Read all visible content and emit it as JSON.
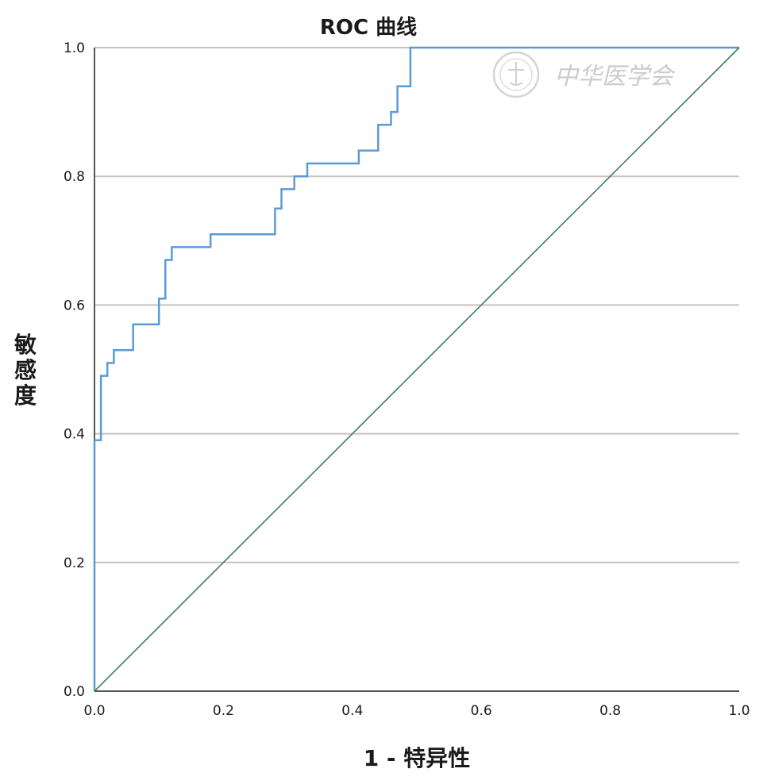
{
  "chart_data": {
    "type": "line",
    "title": "ROC 曲线",
    "xlabel": "1 - 特异性",
    "ylabel": "敏感度",
    "xlim": [
      0,
      1
    ],
    "ylim": [
      0,
      1
    ],
    "x_ticks": [
      "0.0",
      "0.2",
      "0.4",
      "0.6",
      "0.8",
      "1.0"
    ],
    "y_ticks": [
      "0.0",
      "0.2",
      "0.4",
      "0.6",
      "0.8",
      "1.0"
    ],
    "grid": "horizontal",
    "legend": "none",
    "series": [
      {
        "color": "#5b9bd5",
        "step": true,
        "x": [
          0.0,
          0.0,
          0.01,
          0.01,
          0.02,
          0.02,
          0.03,
          0.03,
          0.06,
          0.06,
          0.1,
          0.1,
          0.11,
          0.11,
          0.12,
          0.12,
          0.18,
          0.18,
          0.28,
          0.28,
          0.29,
          0.29,
          0.31,
          0.31,
          0.33,
          0.33,
          0.41,
          0.41,
          0.44,
          0.44,
          0.46,
          0.46,
          0.47,
          0.47,
          0.49,
          0.49,
          1.0
        ],
        "y": [
          0.0,
          0.39,
          0.39,
          0.49,
          0.49,
          0.51,
          0.51,
          0.53,
          0.53,
          0.57,
          0.57,
          0.61,
          0.61,
          0.67,
          0.67,
          0.69,
          0.69,
          0.71,
          0.71,
          0.75,
          0.75,
          0.78,
          0.78,
          0.8,
          0.8,
          0.82,
          0.82,
          0.84,
          0.84,
          0.88,
          0.88,
          0.9,
          0.9,
          0.94,
          0.94,
          1.0,
          1.0
        ]
      },
      {
        "color": "#3e7a6a",
        "x": [
          0.0,
          1.0
        ],
        "y": [
          0.0,
          1.0
        ]
      }
    ]
  },
  "watermark": {
    "text": "中华医学会",
    "icon": "society-seal-icon"
  },
  "colors": {
    "roc_line": "#5b9bd5",
    "reference_line": "#3e7a6a",
    "grid": "#c8c3bd",
    "axis": "#555555"
  }
}
